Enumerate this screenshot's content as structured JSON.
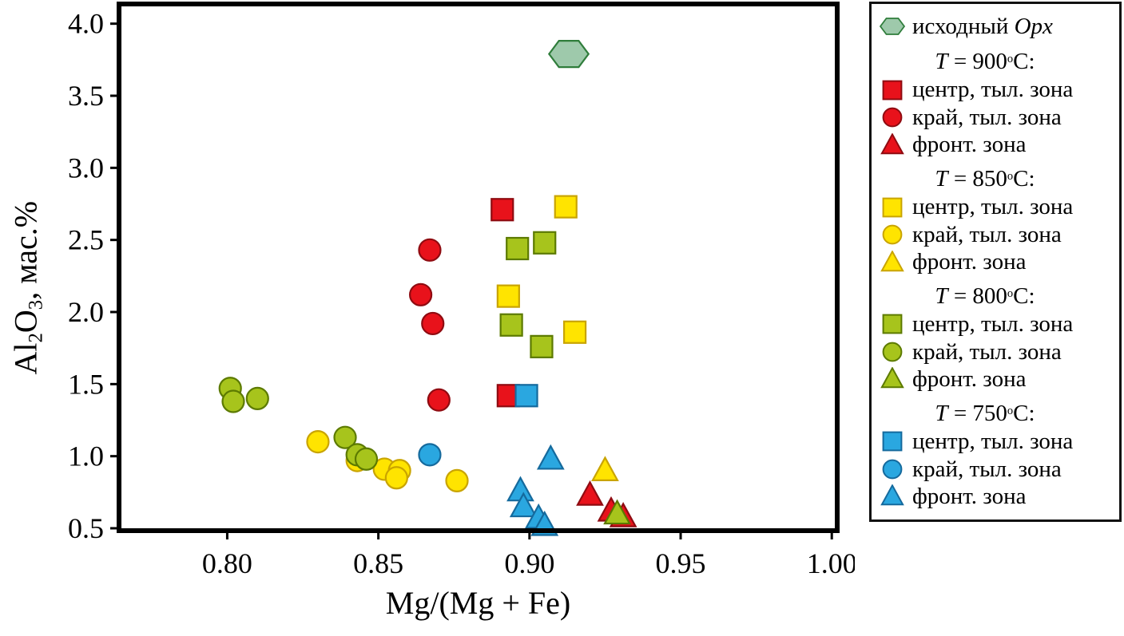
{
  "chart_data": {
    "type": "scatter",
    "title": "",
    "xlabel": "Mg/(Mg + Fe)",
    "ylabel": "Al2O3, мас.%",
    "xlim": [
      0.765,
      1.001
    ],
    "ylim": [
      0.5,
      4.12
    ],
    "grid": false,
    "legend_position": "right-outside",
    "xticks": [
      0.8,
      0.85,
      0.9,
      0.95,
      1.0
    ],
    "xtick_labels": [
      "0.80",
      "0.85",
      "0.90",
      "0.95",
      "1.00"
    ],
    "yticks": [
      0.5,
      1.0,
      1.5,
      2.0,
      2.5,
      3.0,
      3.5,
      4.0
    ],
    "ytick_labels": [
      "0.5",
      "1.0",
      "1.5",
      "2.0",
      "2.5",
      "3.0",
      "3.5",
      "4.0"
    ],
    "series": [
      {
        "name": "исходный Opx",
        "marker": "hexagon",
        "color": "#9ec9ab",
        "stroke": "#2f7d3b",
        "points": [
          [
            0.913,
            3.79
          ]
        ]
      },
      {
        "name": "900C центр, тыл. зона",
        "marker": "square",
        "color": "#e8121b",
        "stroke": "#8f0b11",
        "points": [
          [
            0.891,
            2.71
          ],
          [
            0.893,
            1.42
          ]
        ]
      },
      {
        "name": "900C край, тыл. зона",
        "marker": "circle",
        "color": "#e8121b",
        "stroke": "#8f0b11",
        "points": [
          [
            0.867,
            2.43
          ],
          [
            0.864,
            2.12
          ],
          [
            0.868,
            1.92
          ],
          [
            0.87,
            1.39
          ]
        ]
      },
      {
        "name": "900C фронт. зона",
        "marker": "triangle",
        "color": "#e8121b",
        "stroke": "#8f0b11",
        "points": [
          [
            0.92,
            0.73
          ],
          [
            0.927,
            0.62
          ],
          [
            0.931,
            0.58
          ]
        ]
      },
      {
        "name": "850C центр, тыл. зона",
        "marker": "square",
        "color": "#ffe400",
        "stroke": "#c9a400",
        "points": [
          [
            0.912,
            2.73
          ],
          [
            0.893,
            2.11
          ],
          [
            0.915,
            1.86
          ]
        ]
      },
      {
        "name": "850C край, тыл. зона",
        "marker": "circle",
        "color": "#ffe400",
        "stroke": "#c9a400",
        "points": [
          [
            0.83,
            1.1
          ],
          [
            0.843,
            0.97
          ],
          [
            0.852,
            0.91
          ],
          [
            0.857,
            0.9
          ],
          [
            0.856,
            0.85
          ],
          [
            0.876,
            0.83
          ]
        ]
      },
      {
        "name": "850C фронт. зона",
        "marker": "triangle",
        "color": "#ffe400",
        "stroke": "#c9a400",
        "points": [
          [
            0.925,
            0.9
          ]
        ]
      },
      {
        "name": "800C центр, тыл. зона",
        "marker": "square",
        "color": "#a7c41c",
        "stroke": "#5c7a00",
        "points": [
          [
            0.896,
            2.44
          ],
          [
            0.905,
            2.48
          ],
          [
            0.894,
            1.91
          ],
          [
            0.904,
            1.76
          ]
        ]
      },
      {
        "name": "800C край, тыл. зона",
        "marker": "circle",
        "color": "#a7c41c",
        "stroke": "#5c7a00",
        "points": [
          [
            0.801,
            1.47
          ],
          [
            0.802,
            1.38
          ],
          [
            0.81,
            1.4
          ],
          [
            0.839,
            1.13
          ],
          [
            0.843,
            1.01
          ],
          [
            0.846,
            0.98
          ]
        ]
      },
      {
        "name": "800C фронт. зона",
        "marker": "triangle",
        "color": "#a7c41c",
        "stroke": "#5c7a00",
        "points": [
          [
            0.929,
            0.6
          ]
        ]
      },
      {
        "name": "750C центр, тыл. зона",
        "marker": "square",
        "color": "#2aa7e0",
        "stroke": "#156a9d",
        "points": [
          [
            0.899,
            1.42
          ]
        ]
      },
      {
        "name": "750C край, тыл. зона",
        "marker": "circle",
        "color": "#2aa7e0",
        "stroke": "#156a9d",
        "points": [
          [
            0.867,
            1.01
          ]
        ]
      },
      {
        "name": "750C фронт. зона",
        "marker": "triangle",
        "color": "#2aa7e0",
        "stroke": "#156a9d",
        "points": [
          [
            0.897,
            0.76
          ],
          [
            0.898,
            0.65
          ],
          [
            0.907,
            0.98
          ],
          [
            0.903,
            0.57
          ],
          [
            0.905,
            0.52
          ]
        ]
      }
    ]
  },
  "axes": {
    "xlabel": "Mg/(Mg + Fe)",
    "ylabel": {
      "p1": "Al",
      "s1": "2",
      "p2": "O",
      "s2": "3",
      "p3": ", мас.%"
    }
  },
  "legend": {
    "header": {
      "swatch": {
        "marker": "hexagon",
        "color": "#9ec9ab",
        "stroke": "#2f7d3b"
      },
      "text": "исходный",
      "italic": "Opx"
    },
    "groups": [
      {
        "t": "T",
        "eq": " = 900",
        "sup": "o",
        "suffix": "C:",
        "items": [
          {
            "marker": "square",
            "color": "#e8121b",
            "stroke": "#8f0b11",
            "label": "центр, тыл. зона"
          },
          {
            "marker": "circle",
            "color": "#e8121b",
            "stroke": "#8f0b11",
            "label": "край, тыл. зона"
          },
          {
            "marker": "triangle",
            "color": "#e8121b",
            "stroke": "#8f0b11",
            "label": "фронт. зона"
          }
        ]
      },
      {
        "t": "T",
        "eq": " = 850",
        "sup": "o",
        "suffix": "C:",
        "items": [
          {
            "marker": "square",
            "color": "#ffe400",
            "stroke": "#c9a400",
            "label": "центр, тыл. зона"
          },
          {
            "marker": "circle",
            "color": "#ffe400",
            "stroke": "#c9a400",
            "label": "край, тыл. зона"
          },
          {
            "marker": "triangle",
            "color": "#ffe400",
            "stroke": "#c9a400",
            "label": "фронт. зона"
          }
        ]
      },
      {
        "t": "T",
        "eq": " = 800",
        "sup": "o",
        "suffix": "C:",
        "items": [
          {
            "marker": "square",
            "color": "#a7c41c",
            "stroke": "#5c7a00",
            "label": "центр, тыл. зона"
          },
          {
            "marker": "circle",
            "color": "#a7c41c",
            "stroke": "#5c7a00",
            "label": "край, тыл. зона"
          },
          {
            "marker": "triangle",
            "color": "#a7c41c",
            "stroke": "#5c7a00",
            "label": "фронт. зона"
          }
        ]
      },
      {
        "t": "T",
        "eq": " = 750",
        "sup": "o",
        "suffix": "C:",
        "items": [
          {
            "marker": "square",
            "color": "#2aa7e0",
            "stroke": "#156a9d",
            "label": "центр, тыл. зона"
          },
          {
            "marker": "circle",
            "color": "#2aa7e0",
            "stroke": "#156a9d",
            "label": "край, тыл. зона"
          },
          {
            "marker": "triangle",
            "color": "#2aa7e0",
            "stroke": "#156a9d",
            "label": "фронт. зона"
          }
        ]
      }
    ]
  }
}
